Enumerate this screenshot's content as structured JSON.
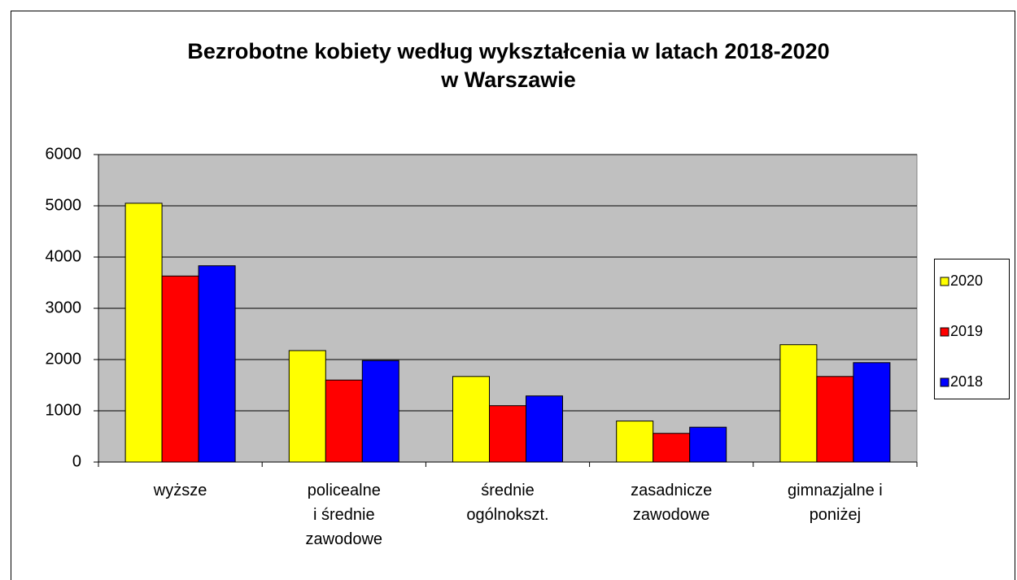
{
  "chart_data": {
    "type": "bar",
    "title": "Bezrobotne kobiety według wykształcenia w latach 2018-2020\nw Warszawie",
    "categories": [
      "wyższe",
      "policealne\ni średnie\nzawodowe",
      "średnie\nogólnokszt.",
      "zasadnicze\nzawodowe",
      "gimnazjalne i\nponiżej"
    ],
    "series": [
      {
        "name": "2020",
        "color": "#ffff00",
        "values": [
          5050,
          2175,
          1670,
          800,
          2290
        ]
      },
      {
        "name": "2019",
        "color": "#ff0000",
        "values": [
          3630,
          1600,
          1100,
          560,
          1670
        ]
      },
      {
        "name": "2018",
        "color": "#0000ff",
        "values": [
          3830,
          1980,
          1290,
          680,
          1940
        ]
      }
    ],
    "ylim": [
      0,
      6000
    ],
    "yticks": [
      0,
      1000,
      2000,
      3000,
      4000,
      5000,
      6000
    ],
    "grid": true,
    "legend": "right"
  }
}
